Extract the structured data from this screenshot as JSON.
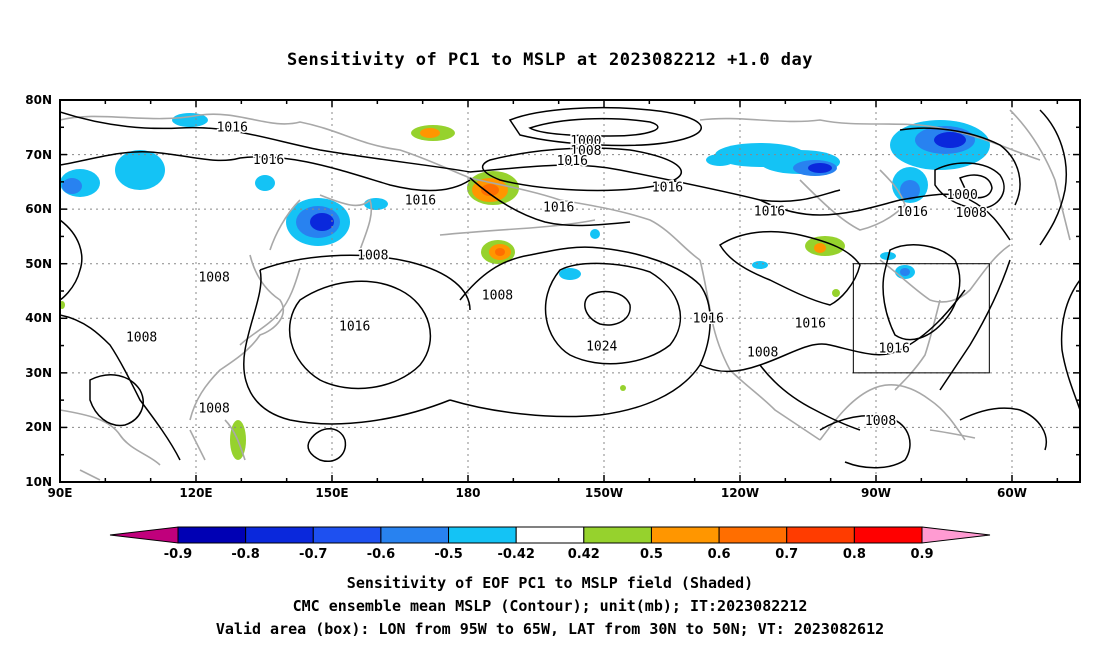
{
  "title": "Sensitivity of PC1 to MSLP at 2023082212 +1.0 day",
  "lat_labels": [
    "80N",
    "70N",
    "60N",
    "50N",
    "40N",
    "30N",
    "20N",
    "10N"
  ],
  "lon_labels": [
    "90E",
    "120E",
    "150E",
    "180",
    "150W",
    "120W",
    "90W",
    "60W"
  ],
  "contour_labels": [
    {
      "text": "1016",
      "lon": 128,
      "lat": 75
    },
    {
      "text": "1016",
      "lon": 136,
      "lat": 69
    },
    {
      "text": "1000",
      "lon": -154,
      "lat": 72.5
    },
    {
      "text": "1008",
      "lon": -154,
      "lat": 70.7
    },
    {
      "text": "1016",
      "lon": -157,
      "lat": 68.8
    },
    {
      "text": "1016",
      "lon": -136,
      "lat": 64
    },
    {
      "text": "1016",
      "lon": -160,
      "lat": 60.3
    },
    {
      "text": "1016",
      "lon": 169.5,
      "lat": 61.6
    },
    {
      "text": "1016",
      "lon": -113.5,
      "lat": 59.6
    },
    {
      "text": "1016",
      "lon": -82,
      "lat": 59.5
    },
    {
      "text": "1000",
      "lon": -71,
      "lat": 62.6
    },
    {
      "text": "1008",
      "lon": -69,
      "lat": 59.3
    },
    {
      "text": "1008",
      "lon": 159,
      "lat": 51.5
    },
    {
      "text": "1008",
      "lon": 124,
      "lat": 47.5
    },
    {
      "text": "1008",
      "lon": -173.5,
      "lat": 44.2
    },
    {
      "text": "1016",
      "lon": 155,
      "lat": 38.5
    },
    {
      "text": "1024",
      "lon": -150.5,
      "lat": 34.8
    },
    {
      "text": "1016",
      "lon": -127,
      "lat": 40
    },
    {
      "text": "1016",
      "lon": -104.5,
      "lat": 39
    },
    {
      "text": "1016",
      "lon": -86,
      "lat": 34.5
    },
    {
      "text": "1008",
      "lon": -115,
      "lat": 33.7
    },
    {
      "text": "1008",
      "lon": 108,
      "lat": 36.5
    },
    {
      "text": "1008",
      "lon": 124,
      "lat": 23.5
    },
    {
      "text": "1008",
      "lon": -89,
      "lat": 21.2
    }
  ],
  "valid_box": {
    "lon_min": -95,
    "lon_max": -65,
    "lat_min": 30,
    "lat_max": 50
  },
  "colorbar": {
    "colors": [
      "#c0007c",
      "#0000b4",
      "#0a28dc",
      "#1e50f0",
      "#2882f0",
      "#14c3f5",
      "#ffffff",
      "#96d22d",
      "#ff9600",
      "#ff6e00",
      "#ff3c00",
      "#ff0000",
      "#ff9bd2"
    ],
    "labels": [
      "-0.9",
      "-0.8",
      "-0.7",
      "-0.6",
      "-0.5",
      "-0.42",
      "0.42",
      "0.5",
      "0.6",
      "0.7",
      "0.8",
      "0.9"
    ]
  },
  "footer": {
    "line1": "Sensitivity of EOF PC1 to MSLP field (Shaded)",
    "line2": "CMC ensemble mean MSLP (Contour); unit(mb); IT:2023082212",
    "line3": "Valid area (box): LON from 95W to 65W, LAT from 30N to 50N; VT: 2023082612"
  }
}
